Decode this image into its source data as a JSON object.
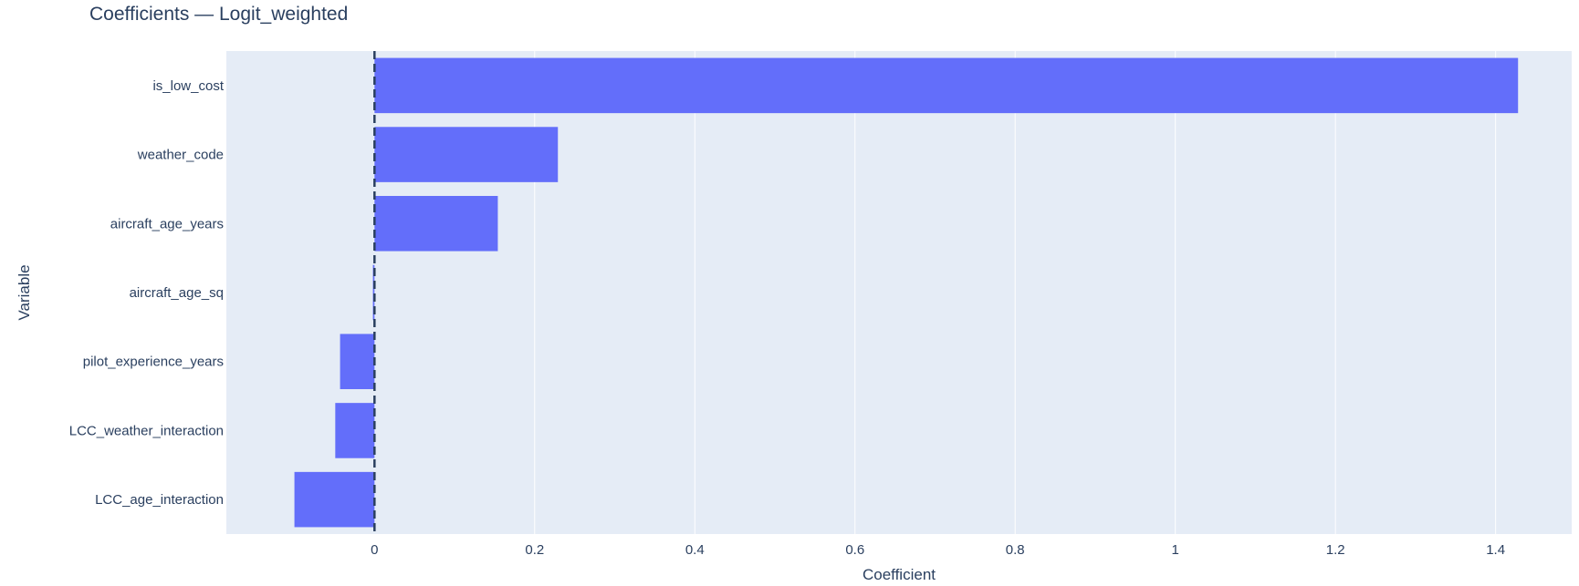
{
  "chart_data": {
    "type": "bar",
    "orientation": "horizontal",
    "title": "Coefficients — Logit_weighted",
    "xlabel": "Coefficient",
    "ylabel": "Variable",
    "categories": [
      "is_low_cost",
      "weather_code",
      "aircraft_age_years",
      "aircraft_age_sq",
      "pilot_experience_years",
      "LCC_weather_interaction",
      "LCC_age_interaction"
    ],
    "values": [
      1.428,
      0.229,
      0.154,
      -0.002,
      -0.043,
      -0.049,
      -0.1
    ],
    "xlim": [
      -0.185,
      1.495
    ],
    "xticks": [
      0,
      0.2,
      0.4,
      0.6,
      0.8,
      1,
      1.2,
      1.4
    ],
    "xtick_labels": [
      "0",
      "0.2",
      "0.4",
      "0.6",
      "0.8",
      "1",
      "1.2",
      "1.4"
    ],
    "grid": true,
    "reference_line": {
      "x": 0,
      "style": "dashed"
    },
    "colors": {
      "bar": "#636efa",
      "plot_bg": "#e5ecf6",
      "grid": "#ffffff",
      "text": "#2a3f5f",
      "ref_line": "#2a3f5f"
    }
  }
}
